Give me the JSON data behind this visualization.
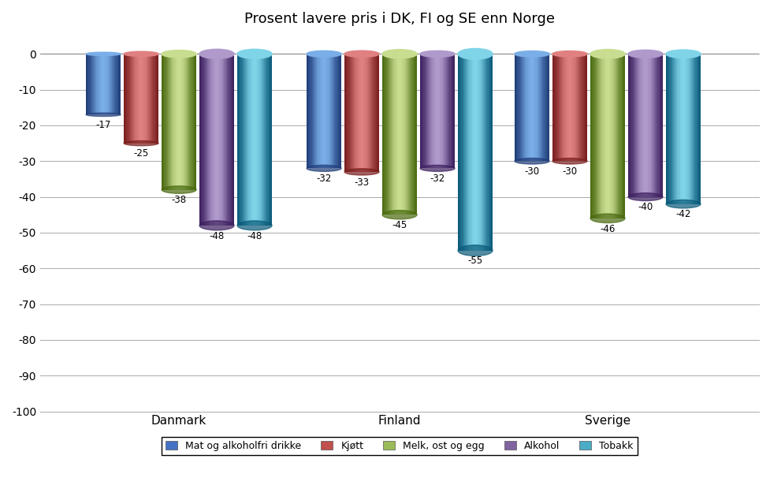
{
  "title": "Prosent lavere pris i DK, FI og SE enn Norge",
  "categories": [
    "Danmark",
    "Finland",
    "Sverige"
  ],
  "series_names": [
    "Mat og alkoholfri drikke",
    "Kjøtt",
    "Melk, ost og egg",
    "Alkohol",
    "Tobakk"
  ],
  "series_colors": [
    "#4472C4",
    "#C0504D",
    "#9BBB59",
    "#8064A2",
    "#4BACC6"
  ],
  "series_colors_light": [
    "#7AAEE8",
    "#E08080",
    "#C8DD90",
    "#B09ACC",
    "#80D4E8"
  ],
  "series_colors_dark": [
    "#1F3D7A",
    "#7A1E1E",
    "#4A6A10",
    "#3D2060",
    "#0A5A7A"
  ],
  "values": {
    "Danmark": [
      -17,
      -25,
      -38,
      -48,
      -48
    ],
    "Finland": [
      -32,
      -33,
      -45,
      -32,
      -55
    ],
    "Sverige": [
      -30,
      -30,
      -46,
      -40,
      -42
    ]
  },
  "ylim": [
    -100,
    5
  ],
  "yticks": [
    0,
    -10,
    -20,
    -30,
    -40,
    -50,
    -60,
    -70,
    -80,
    -90,
    -100
  ],
  "bar_width": 0.055,
  "group_centers": [
    0.2,
    0.55,
    0.88
  ]
}
